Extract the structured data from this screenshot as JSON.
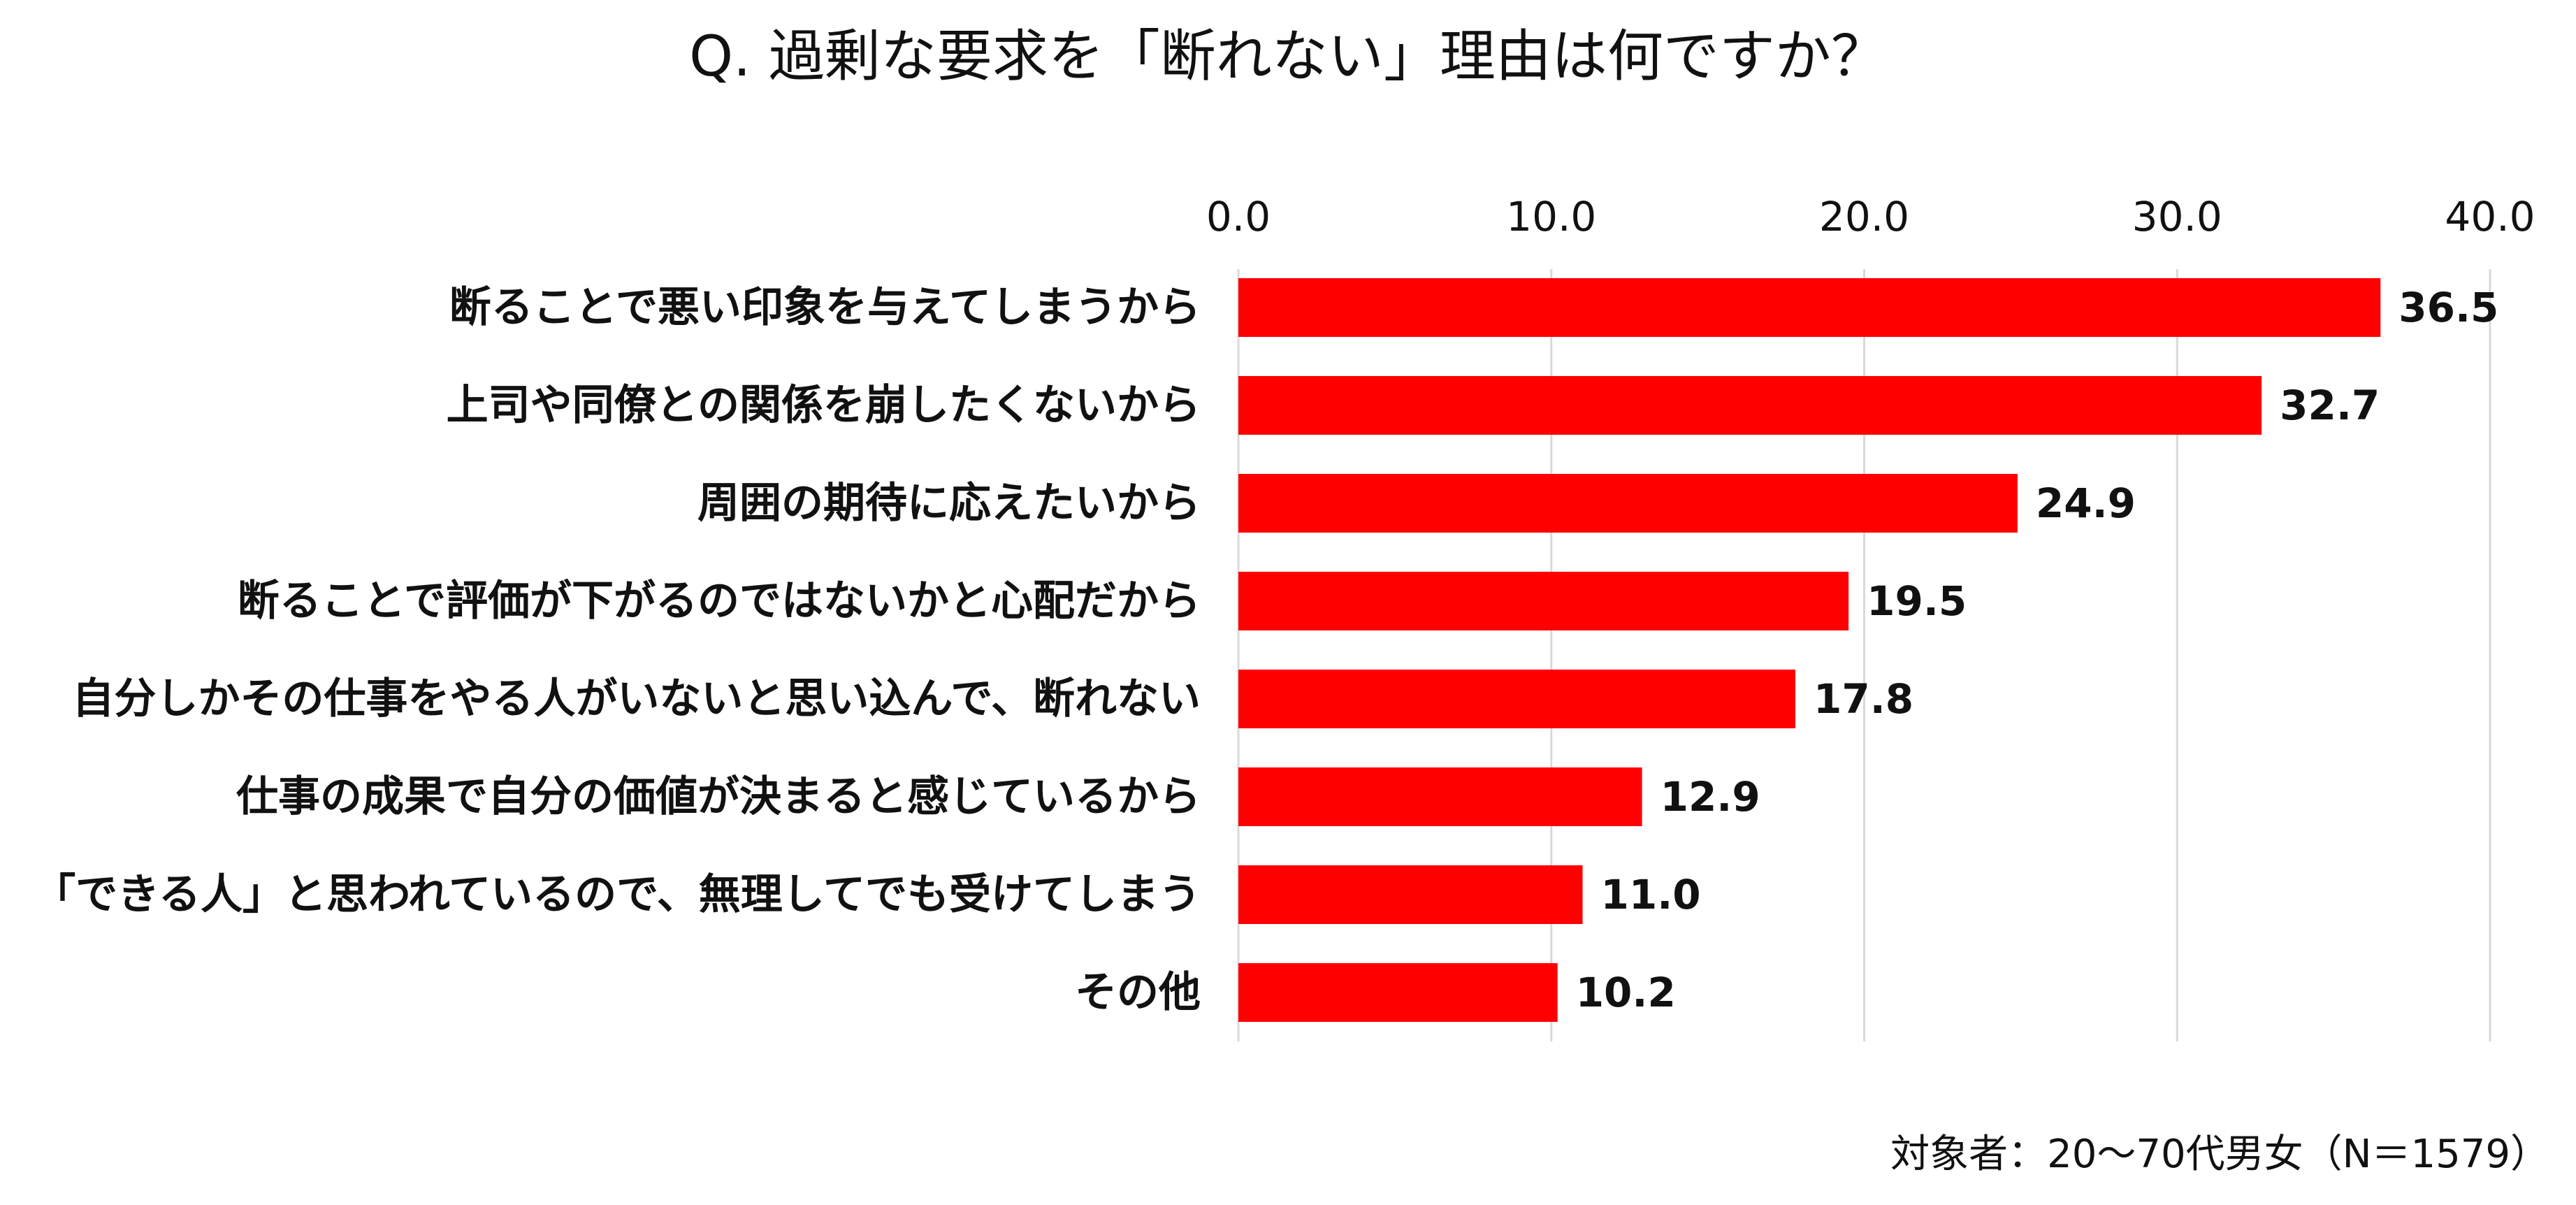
{
  "chart_data": {
    "type": "bar",
    "orientation": "horizontal",
    "title": "Q. 過剰な要求を「断れない」理由は何ですか？",
    "note": "対象者：20～70代男女（N＝1579）",
    "xlim": [
      0,
      40
    ],
    "ticks": [
      "0.0",
      "10.0",
      "20.0",
      "30.0",
      "40.0"
    ],
    "tick_values": [
      0,
      10,
      20,
      30,
      40
    ],
    "grid": true,
    "axis_position": "top",
    "bar_color": "#FF0000",
    "categories": [
      "断ることで悪い印象を与えてしまうから",
      "上司や同僚との関係を崩したくないから",
      "周囲の期待に応えたいから",
      "断ることで評価が下がるのではないかと心配だから",
      "自分しかその仕事をやる人がいないと思い込んで、断れない",
      "仕事の成果で自分の価値が決まると感じているから",
      "「できる人」と思われているので、無理してでも受けてしまう",
      "その他"
    ],
    "values": [
      36.5,
      32.7,
      24.9,
      19.5,
      17.8,
      12.9,
      11.0,
      10.2
    ],
    "value_labels": [
      "36.5",
      "32.7",
      "24.9",
      "19.5",
      "17.8",
      "12.9",
      "11.0",
      "10.2"
    ]
  }
}
